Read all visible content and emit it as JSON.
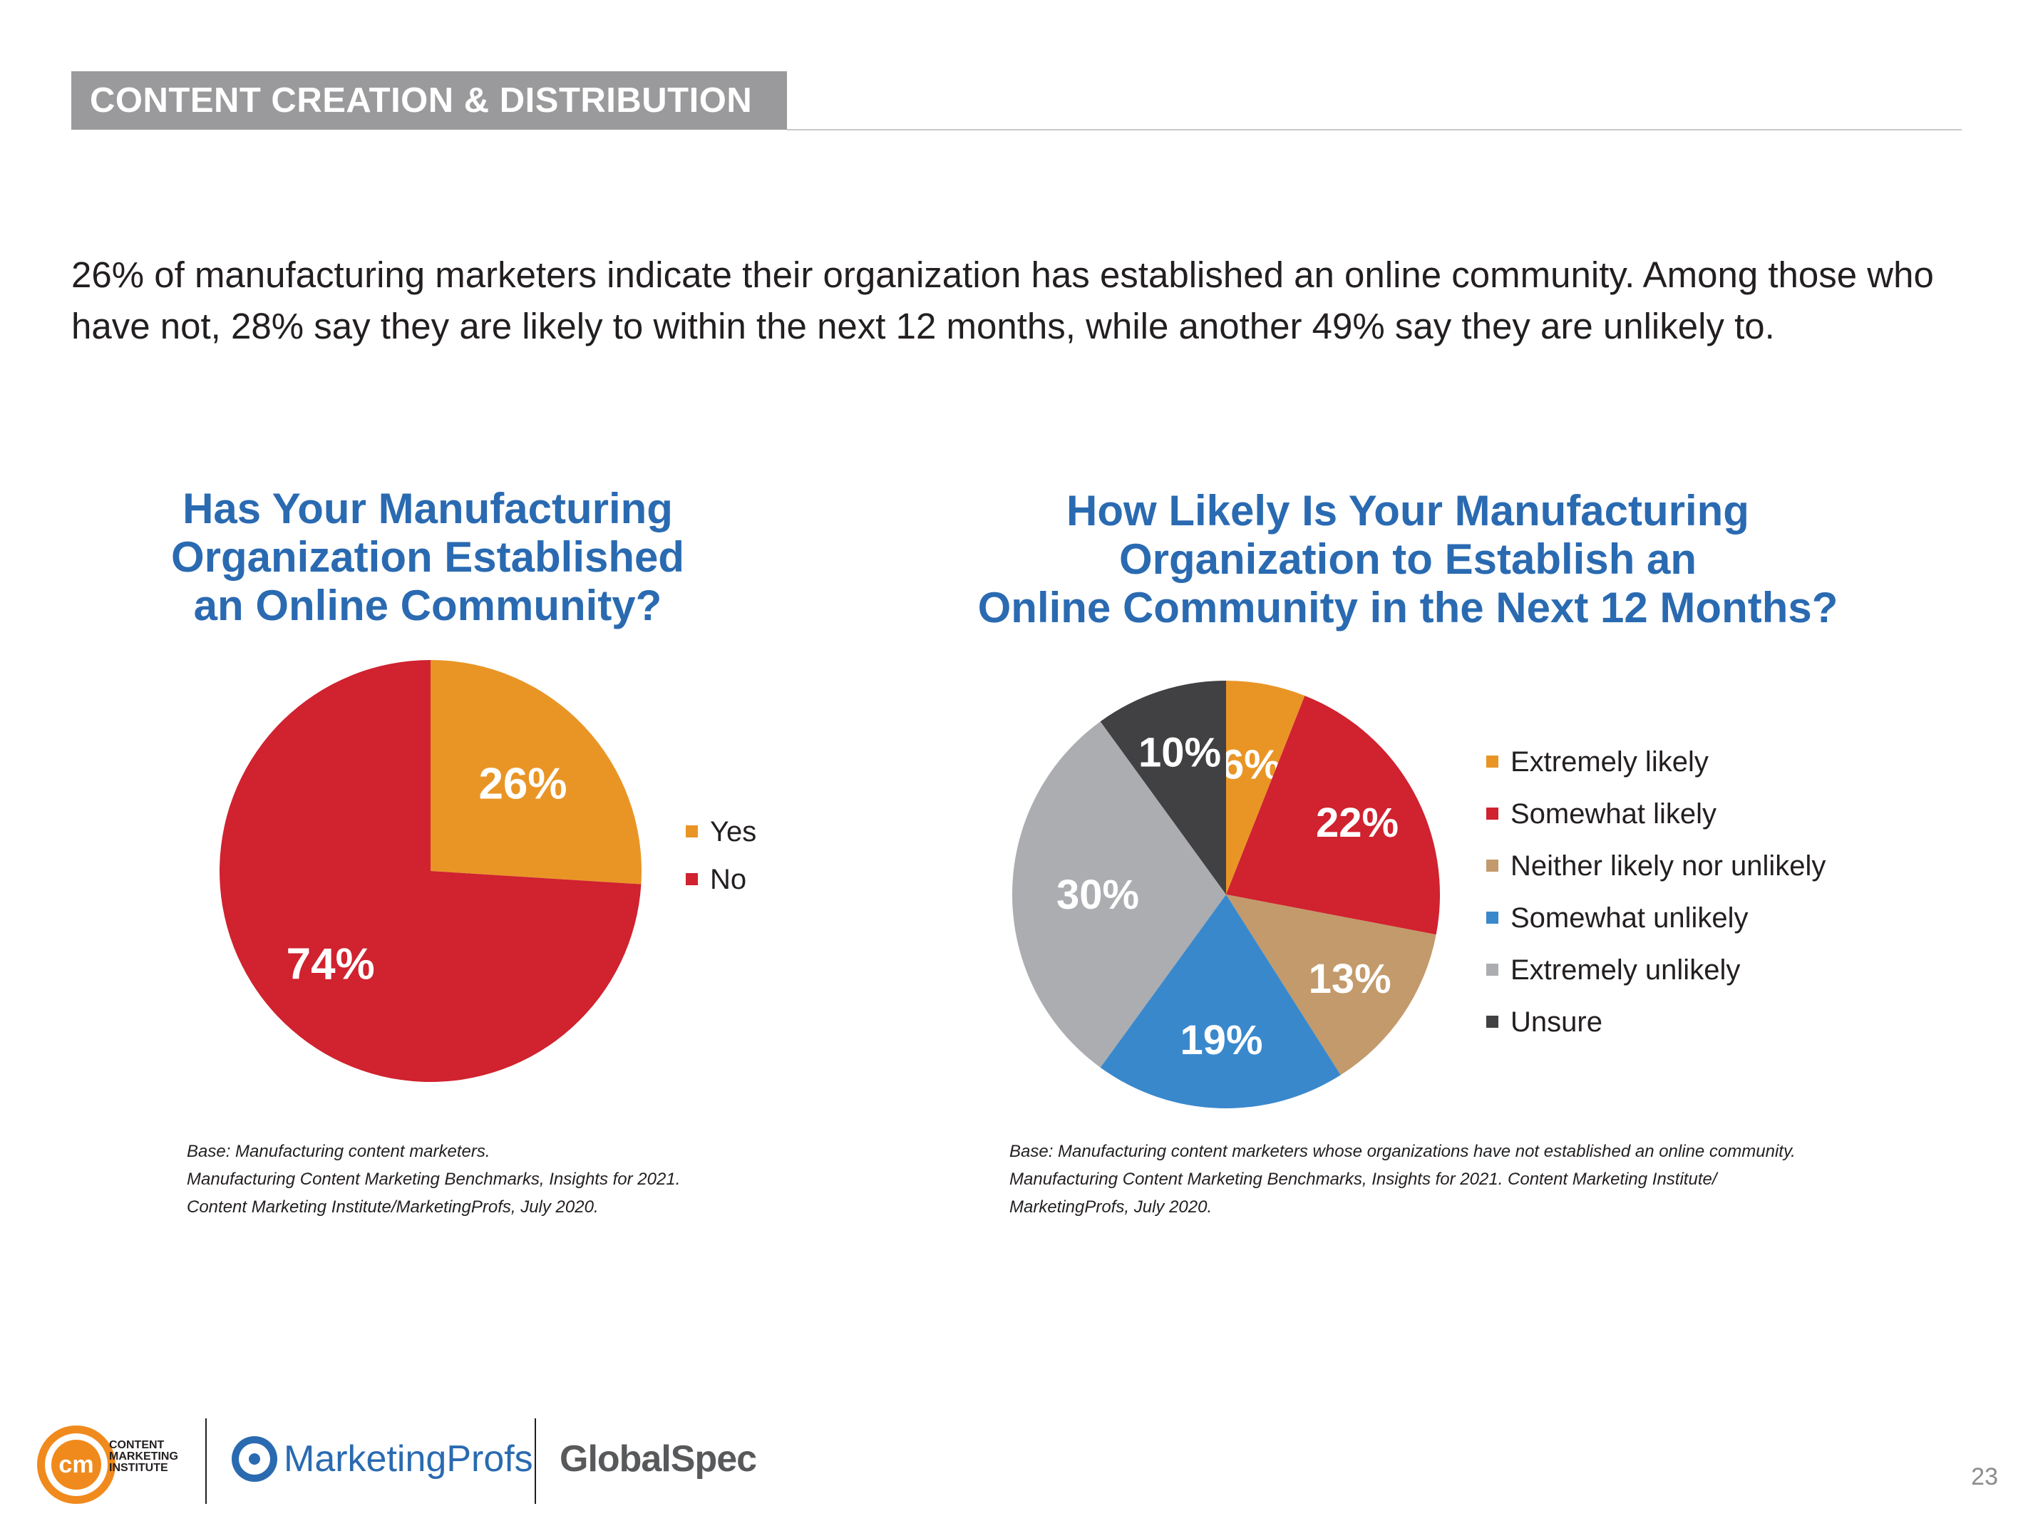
{
  "section": {
    "label": "CONTENT CREATION & DISTRIBUTION"
  },
  "intro": {
    "line1": "26% of manufacturing marketers indicate their organization has established an online community. Among those who",
    "line2": "have not, 28% say they are likely to within the next 12 months, while another 49% say they are unlikely to."
  },
  "chart_data": [
    {
      "type": "pie",
      "title_lines": [
        "Has Your Manufacturing",
        "Organization Established",
        "an Online Community?"
      ],
      "slices": [
        {
          "label": "Yes",
          "value": 26,
          "display": "26%",
          "color": "#e99526"
        },
        {
          "label": "No",
          "value": 74,
          "display": "74%",
          "color": "#d0222f"
        }
      ],
      "legend_position": "right",
      "source_lines": [
        "Base: Manufacturing content marketers.",
        "Manufacturing Content Marketing Benchmarks, Insights for 2021.",
        "Content Marketing Institute/MarketingProfs, July 2020."
      ]
    },
    {
      "type": "pie",
      "title_lines": [
        "How Likely Is Your Manufacturing",
        "Organization to Establish an",
        "Online Community in the Next 12 Months?"
      ],
      "slices": [
        {
          "label": "Extremely likely",
          "value": 6,
          "display": "6%",
          "color": "#e99526"
        },
        {
          "label": "Somewhat likely",
          "value": 22,
          "display": "22%",
          "color": "#d0222f"
        },
        {
          "label": "Neither likely nor unlikely",
          "value": 13,
          "display": "13%",
          "color": "#c39a6b"
        },
        {
          "label": "Somewhat unlikely",
          "value": 19,
          "display": "19%",
          "color": "#3a88cc"
        },
        {
          "label": "Extremely unlikely",
          "value": 30,
          "display": "30%",
          "color": "#abadb0"
        },
        {
          "label": "Unsure",
          "value": 10,
          "display": "10%",
          "color": "#414042"
        }
      ],
      "legend_position": "right",
      "source_lines": [
        "Base: Manufacturing content marketers whose organizations have not established an online community.",
        "Manufacturing Content Marketing Benchmarks, Insights for 2021. Content Marketing Institute/",
        "MarketingProfs, July 2020."
      ]
    }
  ],
  "footer": {
    "cmi_letters": "cm",
    "cmi_text": [
      "CONTENT",
      "MARKETING",
      "INSTITUTE"
    ],
    "marketingprofs": "MarketingProfs",
    "globalspec": "GlobalSpec",
    "page_number": "23"
  }
}
